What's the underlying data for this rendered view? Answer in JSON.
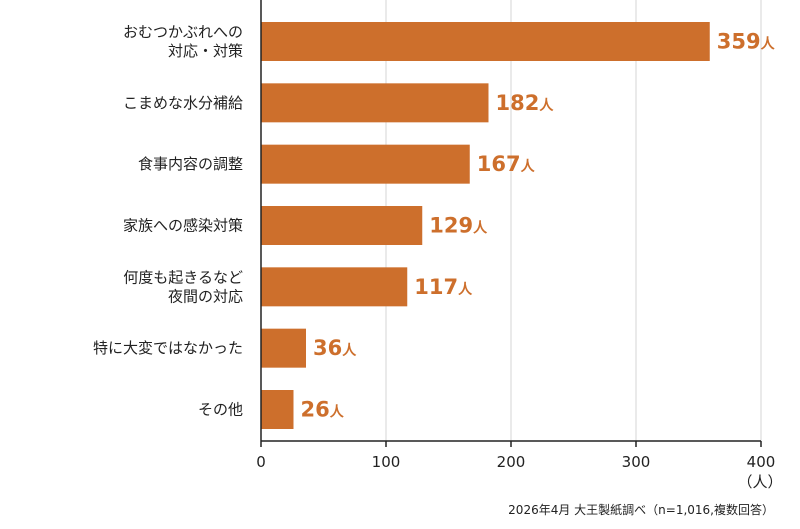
{
  "chart_data": {
    "type": "bar",
    "orientation": "horizontal",
    "categories": [
      [
        "おむつかぶれへの",
        "対応・対策"
      ],
      [
        "こまめな水分補給"
      ],
      [
        "食事内容の調整"
      ],
      [
        "家族への感染対策"
      ],
      [
        "何度も起きるなど",
        "夜間の対応"
      ],
      [
        "特に大変ではなかった"
      ],
      [
        "その他"
      ]
    ],
    "values": [
      359,
      182,
      167,
      129,
      117,
      36,
      26
    ],
    "value_unit": "人",
    "xlim": [
      0,
      400
    ],
    "xticks": [
      0,
      100,
      200,
      300,
      400
    ],
    "unit_label": "（人）",
    "grid": true,
    "colors": {
      "bar": "#CD6F2C",
      "label": "#CD6F2C",
      "grid": "#DDDDDD",
      "axis": "#222222"
    }
  },
  "source_note": "2026年4月 大王製紙調べ（n=1,016,複数回答）"
}
